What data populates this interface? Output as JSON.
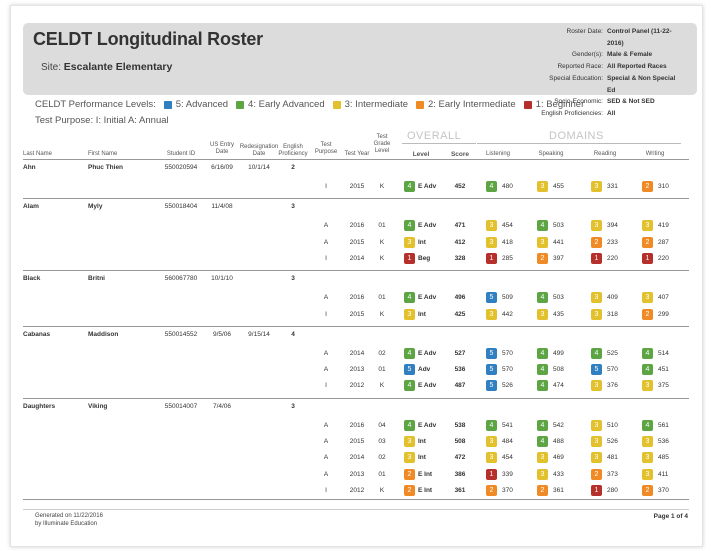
{
  "title": "CELDT Longitudinal Roster",
  "site": {
    "label": "Site:",
    "name": "Escalante Elementary"
  },
  "meta": [
    {
      "k": "Roster Date:",
      "v": "Control Panel (11-22-2016)"
    },
    {
      "k": "Gender(s):",
      "v": "Male & Female"
    },
    {
      "k": "Reported Race:",
      "v": "All Reported Races"
    },
    {
      "k": "Special Education:",
      "v": "Special & Non Special Ed"
    },
    {
      "k": "Socio-Economic:",
      "v": "SED & Not SED"
    },
    {
      "k": "English Proficiencies:",
      "v": "All"
    }
  ],
  "performance": {
    "label": "CELDT Performance Levels:",
    "levels": [
      {
        "n": 5,
        "text": "5: Advanced",
        "color": "#2f7fc1"
      },
      {
        "n": 4,
        "text": "4: Early Advanced",
        "color": "#5da543"
      },
      {
        "n": 3,
        "text": "3: Intermediate",
        "color": "#e3c12c"
      },
      {
        "n": 2,
        "text": "2: Early Intermediate",
        "color": "#ef8a24"
      },
      {
        "n": 1,
        "text": "1: Beginner",
        "color": "#b5302a"
      }
    ]
  },
  "test_purpose": {
    "label": "Test Purpose:",
    "value": "I: Initial A: Annual"
  },
  "headers": {
    "last_name": "Last Name",
    "first_name": "First Name",
    "student_id": "Student ID",
    "us_entry": "US Entry\nDate",
    "redesignation": "Redesignation\nDate",
    "english_prof": "English\nProficiency",
    "test_purpose": "Test\nPurpose",
    "test_year": "Test Year",
    "test_grade": "Test\nGrade\nLevel",
    "overall": "OVERALL",
    "domains": "DOMAINS",
    "level": "Level",
    "score": "Score",
    "listening": "Listening",
    "speaking": "Speaking",
    "reading": "Reading",
    "writing": "Writing"
  },
  "students": [
    {
      "last": "Ahn",
      "first": "Phuc Thien",
      "id": "550020594",
      "entry": "6/16/09",
      "redes": "10/1/14",
      "prof": "2",
      "tests": [
        {
          "purpose": "I",
          "year": "2015",
          "grade": "K",
          "level": 4,
          "level_text": "E Adv",
          "score": "452",
          "listening": [
            4,
            "480"
          ],
          "speaking": [
            3,
            "455"
          ],
          "reading": [
            3,
            "331"
          ],
          "writing": [
            2,
            "310"
          ]
        }
      ]
    },
    {
      "last": "Alam",
      "first": "Myly",
      "id": "550018404",
      "entry": "11/4/08",
      "redes": "",
      "prof": "3",
      "tests": [
        {
          "purpose": "A",
          "year": "2016",
          "grade": "01",
          "level": 4,
          "level_text": "E Adv",
          "score": "471",
          "listening": [
            3,
            "454"
          ],
          "speaking": [
            4,
            "503"
          ],
          "reading": [
            3,
            "394"
          ],
          "writing": [
            3,
            "419"
          ]
        },
        {
          "purpose": "A",
          "year": "2015",
          "grade": "K",
          "level": 3,
          "level_text": "Int",
          "score": "412",
          "listening": [
            3,
            "418"
          ],
          "speaking": [
            3,
            "441"
          ],
          "reading": [
            2,
            "233"
          ],
          "writing": [
            2,
            "287"
          ]
        },
        {
          "purpose": "I",
          "year": "2014",
          "grade": "K",
          "level": 1,
          "level_text": "Beg",
          "score": "328",
          "listening": [
            1,
            "285"
          ],
          "speaking": [
            2,
            "397"
          ],
          "reading": [
            1,
            "220"
          ],
          "writing": [
            1,
            "220"
          ]
        }
      ]
    },
    {
      "last": "Black",
      "first": "Britni",
      "id": "560067780",
      "entry": "10/1/10",
      "redes": "",
      "prof": "3",
      "tests": [
        {
          "purpose": "A",
          "year": "2016",
          "grade": "01",
          "level": 4,
          "level_text": "E Adv",
          "score": "496",
          "listening": [
            5,
            "509"
          ],
          "speaking": [
            4,
            "503"
          ],
          "reading": [
            3,
            "409"
          ],
          "writing": [
            3,
            "407"
          ]
        },
        {
          "purpose": "I",
          "year": "2015",
          "grade": "K",
          "level": 3,
          "level_text": "Int",
          "score": "425",
          "listening": [
            3,
            "442"
          ],
          "speaking": [
            3,
            "435"
          ],
          "reading": [
            3,
            "318"
          ],
          "writing": [
            2,
            "299"
          ]
        }
      ]
    },
    {
      "last": "Cabanas",
      "first": "Maddison",
      "id": "550014552",
      "entry": "9/5/06",
      "redes": "9/15/14",
      "prof": "4",
      "tests": [
        {
          "purpose": "A",
          "year": "2014",
          "grade": "02",
          "level": 4,
          "level_text": "E Adv",
          "score": "527",
          "listening": [
            5,
            "570"
          ],
          "speaking": [
            4,
            "499"
          ],
          "reading": [
            4,
            "525"
          ],
          "writing": [
            4,
            "514"
          ]
        },
        {
          "purpose": "A",
          "year": "2013",
          "grade": "01",
          "level": 5,
          "level_text": "Adv",
          "score": "536",
          "listening": [
            5,
            "570"
          ],
          "speaking": [
            4,
            "508"
          ],
          "reading": [
            5,
            "570"
          ],
          "writing": [
            4,
            "451"
          ]
        },
        {
          "purpose": "I",
          "year": "2012",
          "grade": "K",
          "level": 4,
          "level_text": "E Adv",
          "score": "487",
          "listening": [
            5,
            "526"
          ],
          "speaking": [
            4,
            "474"
          ],
          "reading": [
            3,
            "376"
          ],
          "writing": [
            3,
            "375"
          ]
        }
      ]
    },
    {
      "last": "Daughters",
      "first": "Viking",
      "id": "550014007",
      "entry": "7/4/06",
      "redes": "",
      "prof": "3",
      "tests": [
        {
          "purpose": "A",
          "year": "2016",
          "grade": "04",
          "level": 4,
          "level_text": "E Adv",
          "score": "538",
          "listening": [
            4,
            "541"
          ],
          "speaking": [
            4,
            "542"
          ],
          "reading": [
            3,
            "510"
          ],
          "writing": [
            4,
            "561"
          ]
        },
        {
          "purpose": "A",
          "year": "2015",
          "grade": "03",
          "level": 3,
          "level_text": "Int",
          "score": "508",
          "listening": [
            3,
            "484"
          ],
          "speaking": [
            4,
            "488"
          ],
          "reading": [
            3,
            "526"
          ],
          "writing": [
            3,
            "536"
          ]
        },
        {
          "purpose": "A",
          "year": "2014",
          "grade": "02",
          "level": 3,
          "level_text": "Int",
          "score": "472",
          "listening": [
            3,
            "454"
          ],
          "speaking": [
            3,
            "469"
          ],
          "reading": [
            3,
            "481"
          ],
          "writing": [
            3,
            "485"
          ]
        },
        {
          "purpose": "A",
          "year": "2013",
          "grade": "01",
          "level": 2,
          "level_text": "E Int",
          "score": "386",
          "listening": [
            1,
            "339"
          ],
          "speaking": [
            3,
            "433"
          ],
          "reading": [
            2,
            "373"
          ],
          "writing": [
            3,
            "411"
          ]
        },
        {
          "purpose": "I",
          "year": "2012",
          "grade": "K",
          "level": 2,
          "level_text": "E Int",
          "score": "361",
          "listening": [
            2,
            "370"
          ],
          "speaking": [
            2,
            "361"
          ],
          "reading": [
            1,
            "280"
          ],
          "writing": [
            2,
            "370"
          ]
        }
      ]
    }
  ],
  "footer": {
    "generated": "Generated on 11/22/2016",
    "by": "by Illuminate Education",
    "page": "Page 1 of 4"
  }
}
